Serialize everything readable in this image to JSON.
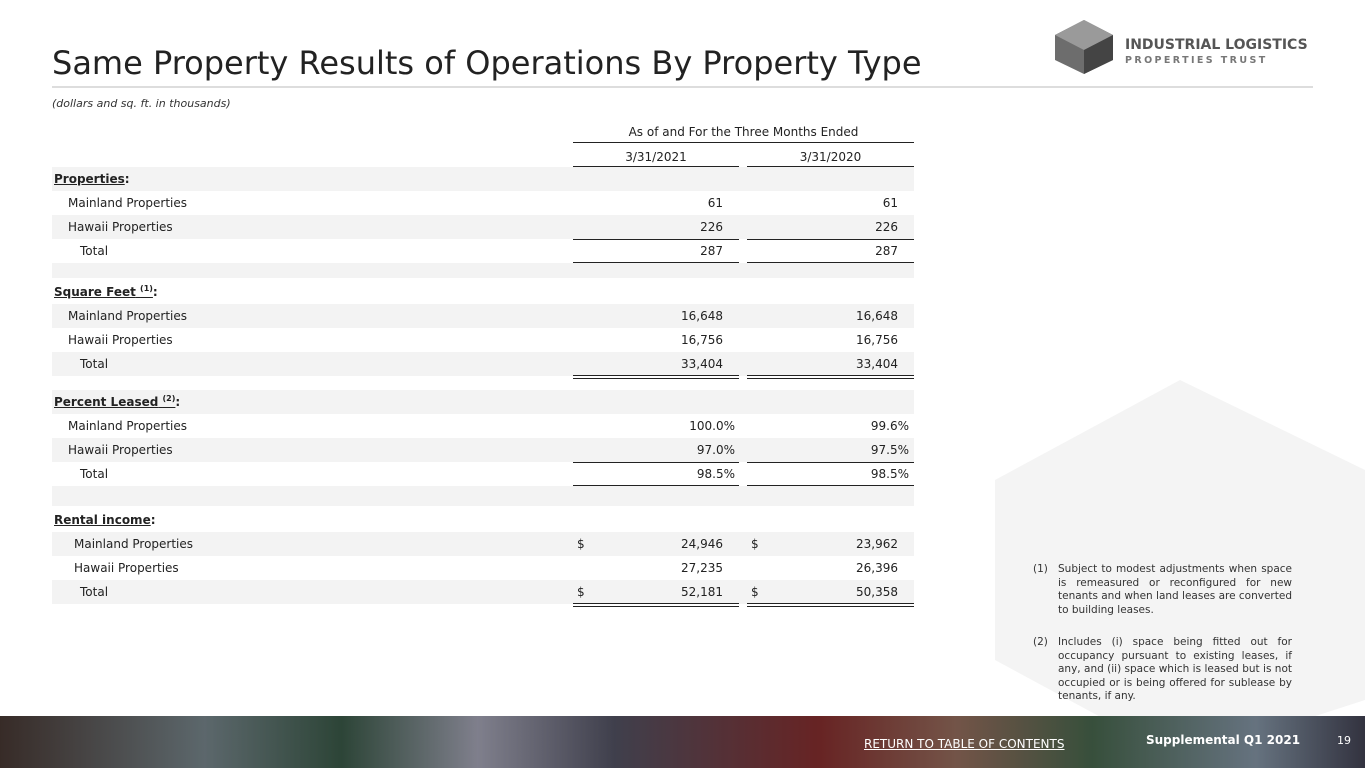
{
  "header": {
    "title": "Same Property Results of Operations By Property Type",
    "subtitle": "(dollars and sq. ft. in thousands)",
    "logo": {
      "line1": "INDUSTRIAL LOGISTICS",
      "line2": "PROPERTIES TRUST"
    }
  },
  "table": {
    "group_header": "As of and For the Three Months Ended",
    "columns": [
      "3/31/2021",
      "3/31/2020"
    ],
    "sections": [
      {
        "heading": "Properties",
        "note": null,
        "punct": ":",
        "style": "int",
        "rows": [
          {
            "label": "Mainland Properties",
            "values": [
              "61",
              "61"
            ]
          },
          {
            "label": "Hawaii Properties",
            "values": [
              "226",
              "226"
            ]
          },
          {
            "label": "Total",
            "values": [
              "287",
              "287"
            ]
          }
        ]
      },
      {
        "heading": "Square Feet",
        "note": "(1)",
        "punct": ":",
        "style": "int",
        "rows": [
          {
            "label": "Mainland Properties",
            "values": [
              "16,648",
              "16,648"
            ]
          },
          {
            "label": "Hawaii Properties",
            "values": [
              "16,756",
              "16,756"
            ]
          },
          {
            "label": "Total",
            "values": [
              "33,404",
              "33,404"
            ]
          }
        ]
      },
      {
        "heading": "Percent Leased",
        "note": "(2)",
        "punct": ":",
        "style": "pct",
        "rows": [
          {
            "label": "Mainland Properties",
            "values": [
              "100.0%",
              "99.6%"
            ]
          },
          {
            "label": "Hawaii Properties",
            "values": [
              "97.0%",
              "97.5%"
            ]
          },
          {
            "label": "Total",
            "values": [
              "98.5%",
              "98.5%"
            ]
          }
        ]
      },
      {
        "heading": "Rental income",
        "note": null,
        "punct": ":",
        "style": "int",
        "rows": [
          {
            "label": "Mainland Properties",
            "values": [
              "24,946",
              "23,962"
            ],
            "currency": [
              "$",
              "$"
            ]
          },
          {
            "label": "Hawaii Properties",
            "values": [
              "27,235",
              "26,396"
            ]
          },
          {
            "label": "Total",
            "values": [
              "52,181",
              "50,358"
            ],
            "currency": [
              "$",
              "$"
            ]
          }
        ]
      }
    ]
  },
  "footnotes": [
    {
      "marker": "(1)",
      "text": "Subject to modest adjustments when space is remeasured or reconfigured for new tenants and when land leases are converted to building leases."
    },
    {
      "marker": "(2)",
      "text": "Includes (i) space being fitted out for occupancy pursuant to existing leases, if any, and (ii) space which is leased but is not occupied or is being offered for sublease by tenants, if any."
    }
  ],
  "footer": {
    "link": "RETURN TO TABLE OF CONTENTS",
    "label": "Supplemental Q1 2021",
    "page": "19"
  }
}
